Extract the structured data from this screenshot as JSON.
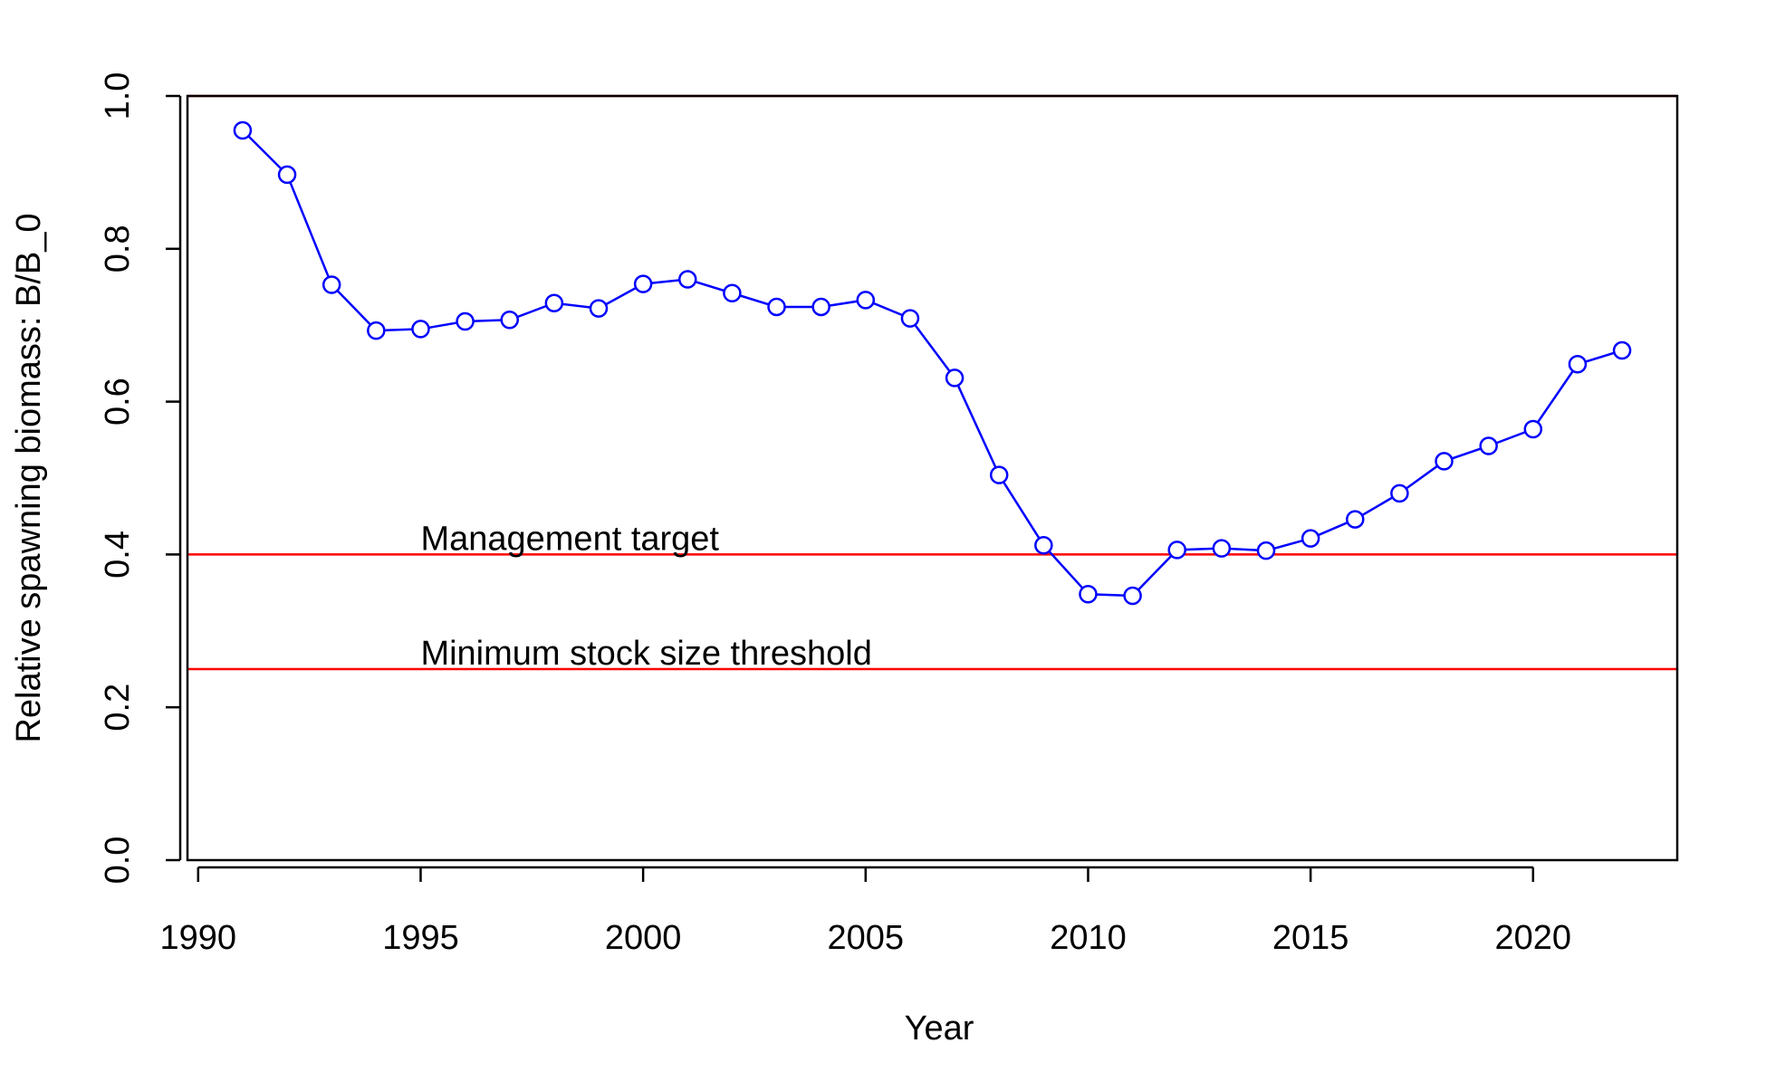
{
  "chart_data": {
    "type": "line",
    "title": "",
    "xlabel": "Year",
    "ylabel": "Relative spawning biomass: B/B_0",
    "xlim": [
      1989.76,
      2023.24
    ],
    "ylim": [
      0.0,
      1.0
    ],
    "xticks": [
      1990,
      1995,
      2000,
      2005,
      2010,
      2015,
      2020
    ],
    "yticks": [
      0.0,
      0.2,
      0.4,
      0.6,
      0.8,
      1.0
    ],
    "xtick_labels": [
      "1990",
      "1995",
      "2000",
      "2005",
      "2010",
      "2015",
      "2020"
    ],
    "ytick_labels": [
      "0.0",
      "0.2",
      "0.4",
      "0.6",
      "0.8",
      "1.0"
    ],
    "grid": false,
    "legend": "none",
    "series": [
      {
        "color": "#0000ff",
        "marker": "open-circle",
        "x": [
          1991,
          1992,
          1993,
          1994,
          1995,
          1996,
          1997,
          1998,
          1999,
          2000,
          2001,
          2002,
          2003,
          2004,
          2005,
          2006,
          2007,
          2008,
          2009,
          2010,
          2011,
          2012,
          2013,
          2014,
          2015,
          2016,
          2017,
          2018,
          2019,
          2020,
          2021,
          2022
        ],
        "y": [
          0.955,
          0.897,
          0.753,
          0.693,
          0.695,
          0.705,
          0.707,
          0.729,
          0.722,
          0.754,
          0.76,
          0.742,
          0.724,
          0.724,
          0.733,
          0.709,
          0.631,
          0.504,
          0.412,
          0.348,
          0.346,
          0.406,
          0.408,
          0.405,
          0.421,
          0.446,
          0.48,
          0.522,
          0.542,
          0.564,
          0.649,
          0.667
        ]
      }
    ],
    "reference_lines": [
      {
        "y": 1.0,
        "color": "#ff0000",
        "label": ""
      },
      {
        "y": 0.4,
        "color": "#ff0000",
        "label": "Management target",
        "label_x": 1995
      },
      {
        "y": 0.25,
        "color": "#ff0000",
        "label": "Minimum stock size threshold",
        "label_x": 1995
      }
    ]
  }
}
